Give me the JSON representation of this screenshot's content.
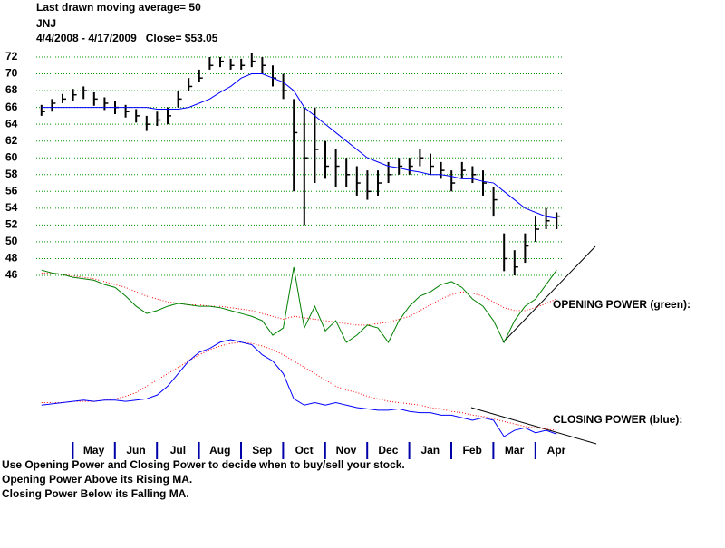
{
  "chart_data": [
    {
      "type": "hlc",
      "title": "Last drawn moving average= 50",
      "subtitle": [
        "JNJ",
        "4/4/2008 - 4/17/2009   Close= $53.05"
      ],
      "xtick_labels": [
        "May",
        "Jun",
        "Jul",
        "Aug",
        "Sep",
        "Oct",
        "Nov",
        "Dec",
        "Jan",
        "Feb",
        "Mar",
        "Apr"
      ],
      "high": [
        66.3,
        67,
        67.6,
        68.2,
        68.5,
        67.8,
        67.2,
        66.8,
        66.3,
        65.8,
        65,
        65.5,
        66,
        68,
        69.5,
        70.5,
        72,
        72,
        71.8,
        71.8,
        72.5,
        72,
        71,
        70,
        67,
        66,
        66,
        62,
        61,
        60,
        59,
        58.5,
        58.5,
        59.5,
        60,
        60,
        61,
        60.5,
        59.5,
        58.5,
        59.5,
        59,
        58.5,
        56.5,
        51,
        49,
        51,
        53,
        54,
        53.5
      ],
      "low": [
        65,
        65.5,
        66.5,
        66.8,
        67,
        66.2,
        65.7,
        65.2,
        64.8,
        64.2,
        63.2,
        63.8,
        64,
        66,
        68,
        69,
        70.5,
        70.8,
        70.5,
        70.5,
        70.8,
        70,
        68.5,
        67,
        56,
        52,
        57,
        57.5,
        56.5,
        56.5,
        55.5,
        55,
        55.5,
        57,
        58,
        58,
        59,
        58,
        57.5,
        56,
        57.5,
        57,
        55.5,
        53,
        46.5,
        46,
        47.5,
        50,
        51.5,
        51.5
      ],
      "close": [
        65.5,
        66.5,
        67,
        67.5,
        68,
        67,
        66.5,
        66,
        65.5,
        65,
        64,
        64.5,
        65,
        67,
        68.5,
        69.5,
        71,
        71.5,
        71,
        71,
        71.5,
        71,
        69.5,
        68,
        63,
        60,
        61,
        59,
        59,
        58,
        57,
        56,
        57,
        58,
        59,
        59,
        60,
        59,
        58.5,
        57,
        58.5,
        58,
        57,
        55,
        48,
        47,
        49.5,
        51.5,
        52.5,
        53.05
      ],
      "bar_color": "#000000",
      "ma_values": [
        66,
        66,
        66,
        66,
        66,
        66,
        66,
        66,
        66,
        66,
        66,
        65.8,
        65.8,
        65.8,
        66,
        66.5,
        67,
        67.8,
        68.5,
        69.5,
        70,
        70,
        69.5,
        69,
        68,
        66,
        65,
        64,
        63,
        62,
        61,
        60,
        59.5,
        59,
        58.8,
        58.5,
        58.3,
        58,
        58,
        57.8,
        57.5,
        57.5,
        57.2,
        57,
        56,
        55,
        54,
        53.5,
        53,
        52.8
      ],
      "ma_color": "#0000ff",
      "ylim": [
        46,
        72
      ],
      "yticks": [
        46,
        48,
        50,
        52,
        54,
        56,
        58,
        60,
        62,
        64,
        66,
        68,
        70,
        72
      ],
      "grid": true,
      "grid_color": "#009900"
    },
    {
      "type": "line",
      "label": "OPENING POWER (green):",
      "series": [
        {
          "color": "#008000",
          "values": [
            80,
            78,
            77,
            75,
            74,
            73,
            70,
            68,
            62,
            55,
            50,
            52,
            55,
            57,
            56,
            55,
            55,
            54,
            52,
            50,
            48,
            45,
            35,
            40,
            82,
            40,
            55,
            38,
            45,
            30,
            35,
            42,
            40,
            30,
            45,
            55,
            62,
            65,
            70,
            72,
            68,
            60,
            55,
            45,
            30,
            45,
            55,
            60,
            70,
            80
          ]
        },
        {
          "color": "#ff0000",
          "dotted": true,
          "values": [
            78,
            78,
            77,
            76,
            75,
            74,
            72,
            70,
            68,
            65,
            62,
            60,
            58,
            57,
            56,
            56,
            55,
            55,
            54,
            53,
            52,
            50,
            48,
            46,
            48,
            47,
            46,
            45,
            44,
            43,
            42,
            42,
            43,
            44,
            46,
            48,
            52,
            56,
            60,
            63,
            65,
            64,
            62,
            58,
            54,
            52,
            52,
            54,
            57,
            60
          ]
        }
      ]
    },
    {
      "type": "line",
      "label": "CLOSING POWER (blue):",
      "series": [
        {
          "color": "#0000ff",
          "values": [
            20,
            21,
            22,
            23,
            24,
            23,
            24,
            24,
            23,
            24,
            25,
            28,
            35,
            45,
            55,
            62,
            65,
            70,
            72,
            70,
            68,
            60,
            55,
            45,
            25,
            20,
            22,
            20,
            22,
            20,
            18,
            17,
            16,
            16,
            17,
            15,
            14,
            14,
            12,
            12,
            10,
            8,
            10,
            8,
            -5,
            0,
            2,
            -2,
            0,
            -3
          ]
        },
        {
          "color": "#ff0000",
          "dotted": true,
          "values": [
            22,
            22,
            22,
            23,
            23,
            23,
            24,
            25,
            27,
            30,
            35,
            40,
            45,
            50,
            55,
            60,
            64,
            67,
            69,
            70,
            69,
            67,
            64,
            60,
            55,
            50,
            45,
            40,
            35,
            32,
            30,
            27,
            25,
            23,
            22,
            21,
            20,
            18,
            17,
            15,
            14,
            12,
            11,
            9,
            7,
            5,
            3,
            2,
            1,
            0
          ]
        }
      ]
    }
  ],
  "notes": [
    "Use Opening Power and Closing Power to decide when to buy/sell your stock.",
    "Opening Power Above its Rising MA.",
    "Closing Power Below its Falling MA."
  ]
}
